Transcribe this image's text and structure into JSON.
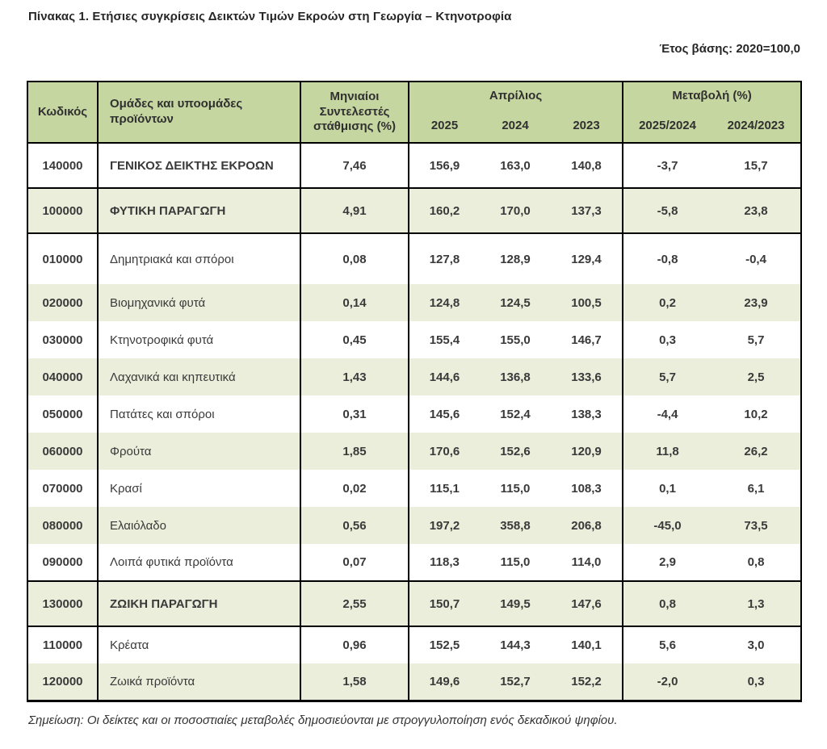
{
  "page": {
    "title": "Πίνακας 1. Ετήσιες συγκρίσεις Δεικτών Τιμών Εκροών στη Γεωργία – Κτηνοτροφία",
    "base_year": "Έτος βάσης: 2020=100,0",
    "note": "Σημείωση: Οι δείκτες και οι ποσοστιαίες μεταβολές δημοσιεύονται με στρογγυλοποίηση ενός δεκαδικού ψηφίου."
  },
  "colors": {
    "header_bg": "#c6d6a0",
    "row_alt_bg": "#eaeedb",
    "border": "#000000",
    "text": "#3a3a3a"
  },
  "table": {
    "headers": {
      "code": "Κωδικός",
      "groups": "Ομάδες και υποομάδες προϊόντων",
      "weights": "Μηνιαίοι Συντελεστές στάθμισης (%)",
      "month_group": "Απρίλιος",
      "change_group": "Μεταβολή (%)",
      "years": [
        "2025",
        "2024",
        "2023"
      ],
      "changes": [
        "2025/2024",
        "2024/2023"
      ]
    },
    "rows": [
      {
        "code": "140000",
        "name": "ΓΕΝΙΚΟΣ ΔΕΙΚΤΗΣ ΕΚΡΟΩΝ",
        "weight": "7,46",
        "apr_2025": "156,9",
        "apr_2024": "163,0",
        "apr_2023": "140,8",
        "chg_2025_2024": "-3,7",
        "chg_2024_2023": "15,7",
        "shaded": false,
        "major": true
      },
      {
        "code": "100000",
        "name": "ΦΥΤΙΚΗ ΠΑΡΑΓΩΓΗ",
        "weight": "4,91",
        "apr_2025": "160,2",
        "apr_2024": "170,0",
        "apr_2023": "137,3",
        "chg_2025_2024": "-5,8",
        "chg_2024_2023": "23,8",
        "shaded": true,
        "major": true
      },
      {
        "code": "010000",
        "name": "Δημητριακά και σπόροι",
        "weight": "0,08",
        "apr_2025": "127,8",
        "apr_2024": "128,9",
        "apr_2023": "129,4",
        "chg_2025_2024": "-0,8",
        "chg_2024_2023": "-0,4",
        "shaded": false,
        "major": false
      },
      {
        "code": "020000",
        "name": "Βιομηχανικά φυτά",
        "weight": "0,14",
        "apr_2025": "124,8",
        "apr_2024": "124,5",
        "apr_2023": "100,5",
        "chg_2025_2024": "0,2",
        "chg_2024_2023": "23,9",
        "shaded": true,
        "major": false
      },
      {
        "code": "030000",
        "name": "Κτηνοτροφικά φυτά",
        "weight": "0,45",
        "apr_2025": "155,4",
        "apr_2024": "155,0",
        "apr_2023": "146,7",
        "chg_2025_2024": "0,3",
        "chg_2024_2023": "5,7",
        "shaded": false,
        "major": false
      },
      {
        "code": "040000",
        "name": "Λαχανικά και κηπευτικά",
        "weight": "1,43",
        "apr_2025": "144,6",
        "apr_2024": "136,8",
        "apr_2023": "133,6",
        "chg_2025_2024": "5,7",
        "chg_2024_2023": "2,5",
        "shaded": true,
        "major": false
      },
      {
        "code": "050000",
        "name": "Πατάτες και σπόροι",
        "weight": "0,31",
        "apr_2025": "145,6",
        "apr_2024": "152,4",
        "apr_2023": "138,3",
        "chg_2025_2024": "-4,4",
        "chg_2024_2023": "10,2",
        "shaded": false,
        "major": false
      },
      {
        "code": "060000",
        "name": "Φρούτα",
        "weight": "1,85",
        "apr_2025": "170,6",
        "apr_2024": "152,6",
        "apr_2023": "120,9",
        "chg_2025_2024": "11,8",
        "chg_2024_2023": "26,2",
        "shaded": true,
        "major": false
      },
      {
        "code": "070000",
        "name": "Κρασί",
        "weight": "0,02",
        "apr_2025": "115,1",
        "apr_2024": "115,0",
        "apr_2023": "108,3",
        "chg_2025_2024": "0,1",
        "chg_2024_2023": "6,1",
        "shaded": false,
        "major": false
      },
      {
        "code": "080000",
        "name": "Ελαιόλαδο",
        "weight": "0,56",
        "apr_2025": "197,2",
        "apr_2024": "358,8",
        "apr_2023": "206,8",
        "chg_2025_2024": "-45,0",
        "chg_2024_2023": "73,5",
        "shaded": true,
        "major": false
      },
      {
        "code": "090000",
        "name": "Λοιπά φυτικά προϊόντα",
        "weight": "0,07",
        "apr_2025": "118,3",
        "apr_2024": "115,0",
        "apr_2023": "114,0",
        "chg_2025_2024": "2,9",
        "chg_2024_2023": "0,8",
        "shaded": false,
        "major": false
      },
      {
        "code": "130000",
        "name": "ΖΩΙΚΗ ΠΑΡΑΓΩΓΗ",
        "weight": "2,55",
        "apr_2025": "150,7",
        "apr_2024": "149,5",
        "apr_2023": "147,6",
        "chg_2025_2024": "0,8",
        "chg_2024_2023": "1,3",
        "shaded": true,
        "major": true
      },
      {
        "code": "110000",
        "name": "Κρέατα",
        "weight": "0,96",
        "apr_2025": "152,5",
        "apr_2024": "144,3",
        "apr_2023": "140,1",
        "chg_2025_2024": "5,6",
        "chg_2024_2023": "3,0",
        "shaded": false,
        "major": false
      },
      {
        "code": "120000",
        "name": "Ζωικά προϊόντα",
        "weight": "1,58",
        "apr_2025": "149,6",
        "apr_2024": "152,7",
        "apr_2023": "152,2",
        "chg_2025_2024": "-2,0",
        "chg_2024_2023": "0,3",
        "shaded": true,
        "major": false
      }
    ]
  }
}
